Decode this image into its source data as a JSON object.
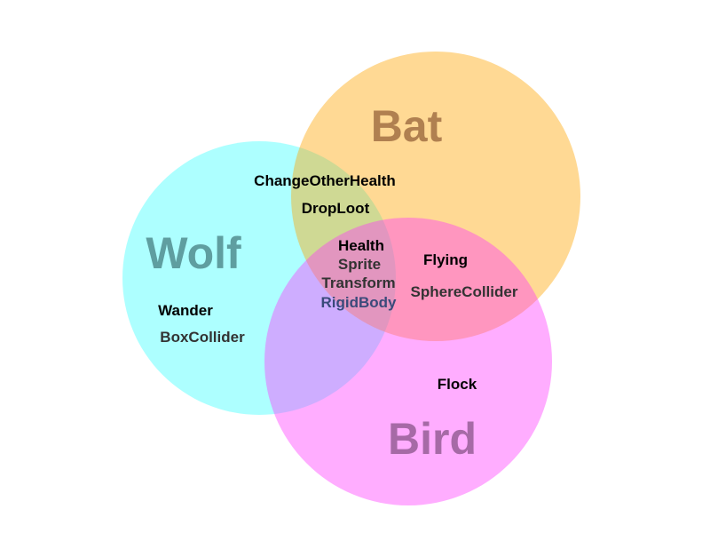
{
  "sets": {
    "wolf": {
      "title": "Wolf",
      "fill": "#00ffff",
      "title_color": "#5f9ea0"
    },
    "bat": {
      "title": "Bat",
      "fill": "#ffa500",
      "title_color": "#b08050"
    },
    "bird": {
      "title": "Bird",
      "fill": "#ff33ff",
      "title_color": "#a66aa6"
    }
  },
  "colors": {
    "behavior_text": "#000000",
    "component_text": "#333333",
    "component_text_blue": "#3a4a7a"
  },
  "regions": {
    "wolf_only": {
      "behaviors": [
        "Wander"
      ],
      "components": [
        "BoxCollider"
      ]
    },
    "bat_only": {
      "behaviors": [],
      "components": []
    },
    "bird_only": {
      "behaviors": [
        "Flock"
      ],
      "components": []
    },
    "wolf_bat": {
      "behaviors": [
        "ChangeOtherHealth",
        "DropLoot"
      ],
      "components": []
    },
    "bat_bird": {
      "behaviors": [
        "Flying"
      ],
      "components": [
        "SphereCollider"
      ]
    },
    "wolf_bird": {
      "behaviors": [],
      "components": []
    },
    "all_three": {
      "behaviors": [
        "Health"
      ],
      "components": [
        "Sprite",
        "Transform",
        "RigidBody"
      ]
    }
  }
}
